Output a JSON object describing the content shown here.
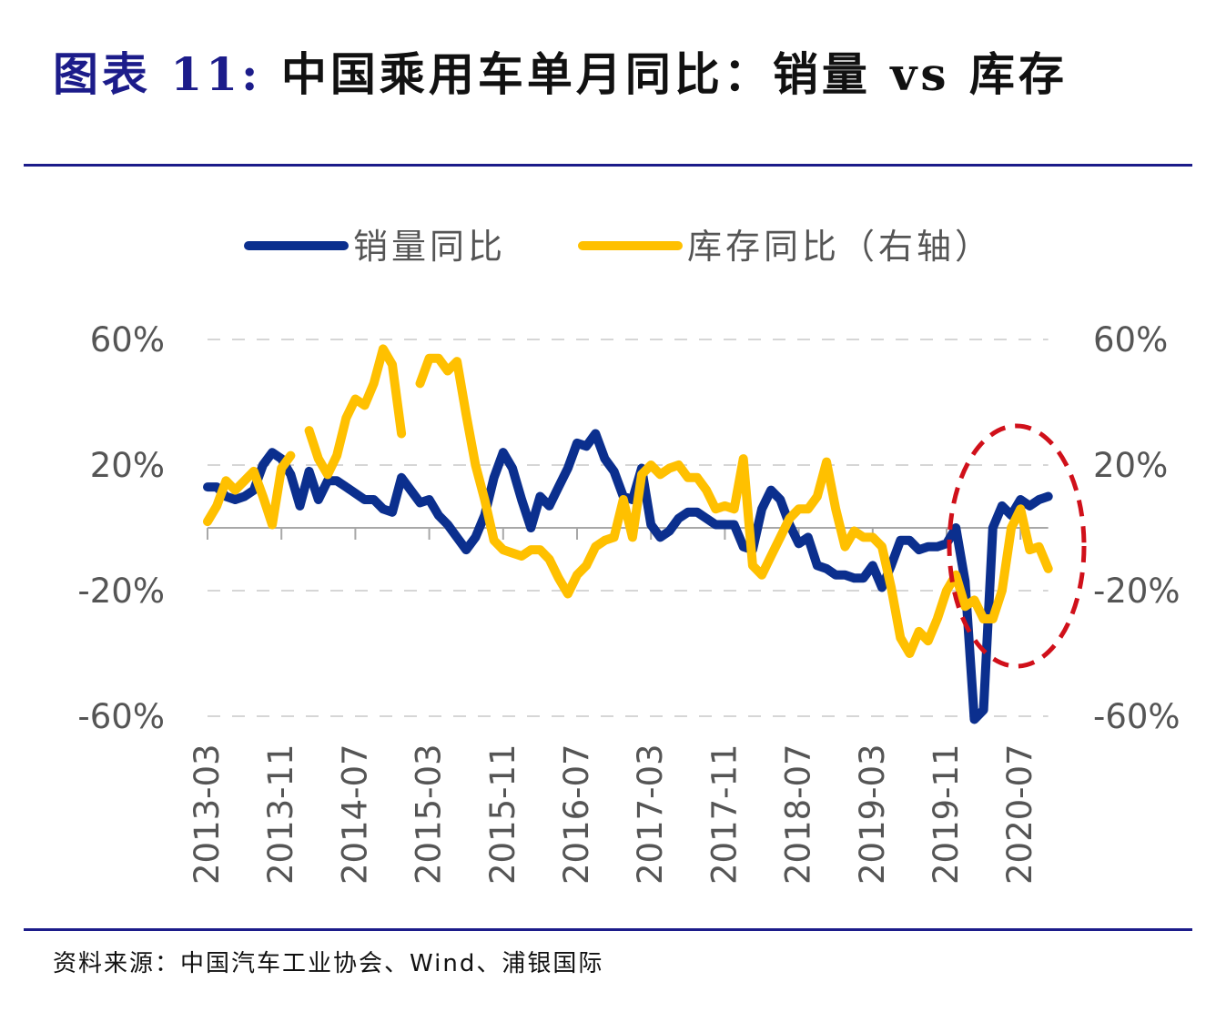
{
  "title": {
    "prefix": "图表 11:",
    "text": "中国乘用车单月同比：销量 vs 库存"
  },
  "source": "资料来源：中国汽车工业协会、Wind、浦银国际",
  "chart_data": {
    "type": "line",
    "title": "",
    "legend_position": "top",
    "grid": true,
    "y_left": {
      "range": [
        -60,
        60
      ],
      "ticks": [
        "60%",
        "20%",
        "-20%",
        "-60%"
      ],
      "tick_values": [
        60,
        20,
        -20,
        -60
      ]
    },
    "y_right": {
      "range": [
        -60,
        60
      ],
      "ticks": [
        "60%",
        "20%",
        "-20%",
        "-60%"
      ],
      "tick_values": [
        60,
        20,
        -20,
        -60
      ]
    },
    "x_tick_labels": [
      "2013-03",
      "2013-11",
      "2014-07",
      "2015-03",
      "2015-11",
      "2016-07",
      "2017-03",
      "2017-11",
      "2018-07",
      "2019-03",
      "2019-11",
      "2020-07"
    ],
    "categories": [
      "2013-03",
      "2013-04",
      "2013-05",
      "2013-06",
      "2013-07",
      "2013-08",
      "2013-09",
      "2013-10",
      "2013-11",
      "2013-12",
      "2014-01",
      "2014-02",
      "2014-03",
      "2014-04",
      "2014-05",
      "2014-06",
      "2014-07",
      "2014-08",
      "2014-09",
      "2014-10",
      "2014-11",
      "2014-12",
      "2015-01",
      "2015-02",
      "2015-03",
      "2015-04",
      "2015-05",
      "2015-06",
      "2015-07",
      "2015-08",
      "2015-09",
      "2015-10",
      "2015-11",
      "2015-12",
      "2016-01",
      "2016-02",
      "2016-03",
      "2016-04",
      "2016-05",
      "2016-06",
      "2016-07",
      "2016-08",
      "2016-09",
      "2016-10",
      "2016-11",
      "2016-12",
      "2017-01",
      "2017-02",
      "2017-03",
      "2017-04",
      "2017-05",
      "2017-06",
      "2017-07",
      "2017-08",
      "2017-09",
      "2017-10",
      "2017-11",
      "2017-12",
      "2018-01",
      "2018-02",
      "2018-03",
      "2018-04",
      "2018-05",
      "2018-06",
      "2018-07",
      "2018-08",
      "2018-09",
      "2018-10",
      "2018-11",
      "2018-12",
      "2019-01",
      "2019-02",
      "2019-03",
      "2019-04",
      "2019-05",
      "2019-06",
      "2019-07",
      "2019-08",
      "2019-09",
      "2019-10",
      "2019-11",
      "2019-12",
      "2020-01",
      "2020-02",
      "2020-03",
      "2020-04",
      "2020-05",
      "2020-06",
      "2020-07",
      "2020-08",
      "2020-09",
      "2020-10"
    ],
    "series": [
      {
        "name": "销量同比",
        "axis": "left",
        "color": "#0B2F8E",
        "values": [
          13,
          13,
          10,
          9,
          10,
          12,
          20,
          24,
          22,
          17,
          7,
          18,
          9,
          15,
          15,
          13,
          11,
          9,
          9,
          6,
          5,
          16,
          12,
          8,
          9,
          4,
          1,
          -3,
          -7,
          -3,
          4,
          16,
          24,
          19,
          9,
          0,
          10,
          7,
          13,
          19,
          27,
          26,
          30,
          22,
          18,
          10,
          9,
          19,
          1,
          -3,
          -1,
          3,
          5,
          5,
          3,
          1,
          1,
          1,
          -6,
          -7,
          6,
          12,
          9,
          1,
          -5,
          -3,
          -12,
          -13,
          -15,
          -15,
          -16,
          -16,
          -12,
          -19,
          -12,
          -4,
          -4,
          -7,
          -6,
          -6,
          -5,
          0,
          -17,
          -61,
          -58,
          0,
          7,
          4,
          9,
          7,
          9,
          10
        ]
      },
      {
        "name": "库存同比（右轴）",
        "axis": "right",
        "color": "#FFC000",
        "values": [
          2,
          7,
          15,
          12,
          15,
          18,
          10,
          1,
          19,
          23,
          null,
          31,
          22,
          17,
          23,
          35,
          41,
          39,
          46,
          57,
          52,
          30,
          null,
          46,
          54,
          54,
          50,
          53,
          36,
          20,
          9,
          -4,
          -7,
          -8,
          -9,
          -7,
          -7,
          -10,
          -16,
          -21,
          -15,
          -12,
          -6,
          -4,
          -3,
          9,
          -3,
          17,
          20,
          17,
          19,
          20,
          16,
          16,
          12,
          6,
          7,
          6,
          22,
          -12,
          -15,
          -9,
          -3,
          3,
          6,
          6,
          10,
          21,
          6,
          -6,
          -1,
          -3,
          -3,
          -6,
          -19,
          -35,
          -40,
          -33,
          -36,
          -29,
          -20,
          -15,
          -25,
          -23,
          -29,
          -29,
          -20,
          0,
          6,
          -7,
          -6,
          -13
        ]
      }
    ],
    "annotation": {
      "shape": "dashed-ellipse",
      "color": "#D0101A",
      "highlight": "2020"
    }
  }
}
